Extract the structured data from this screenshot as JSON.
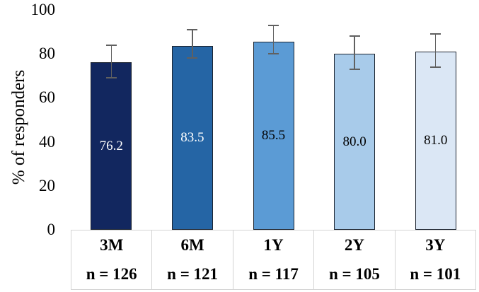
{
  "chart_data": {
    "type": "bar",
    "title": "",
    "ylabel": "% of responders",
    "xlabel": "",
    "ylim": [
      0,
      100
    ],
    "yticks": [
      0,
      20,
      40,
      60,
      80,
      100
    ],
    "grid": false,
    "legend_position": "none",
    "categories": [
      "3M",
      "6M",
      "1Y",
      "2Y",
      "3Y"
    ],
    "sample_sizes": [
      "n = 126",
      "n = 121",
      "n = 117",
      "n = 105",
      "n = 101"
    ],
    "values": [
      76.2,
      83.5,
      85.5,
      80.0,
      81.0
    ],
    "value_labels": [
      "76.2",
      "83.5",
      "85.5",
      "80.0",
      "81.0"
    ],
    "error_upper": [
      84,
      91,
      93,
      88,
      89
    ],
    "error_lower": [
      69,
      78,
      80,
      73,
      74
    ],
    "colors": {
      "bars": [
        "#12275f",
        "#2565a5",
        "#5b9bd5",
        "#a8cbea",
        "#dbe7f5"
      ],
      "value_label_text": [
        "#ffffff",
        "#ffffff",
        "#000000",
        "#000000",
        "#000000"
      ],
      "bar_border": "#1c2430",
      "error_bar": "#606060",
      "axis_text": "#000000",
      "table_border": "#d4d4d4",
      "background": "#ffffff"
    }
  }
}
